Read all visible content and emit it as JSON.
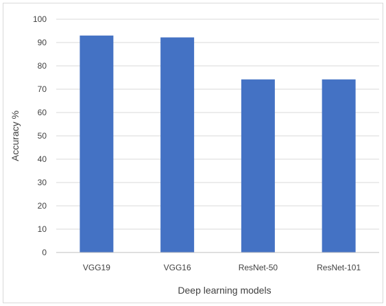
{
  "chart_data": {
    "type": "bar",
    "title": "",
    "xlabel": "Deep learning models",
    "ylabel": "Accuracy %",
    "categories": [
      "VGG19",
      "VGG16",
      "ResNet-50",
      "ResNet-101"
    ],
    "values": [
      93,
      92.2,
      74.2,
      74.2
    ],
    "ylim": [
      0,
      100
    ],
    "yticks": [
      "0",
      "10",
      "20",
      "30",
      "40",
      "50",
      "60",
      "70",
      "80",
      "90",
      "100"
    ],
    "grid": true,
    "legend": "none",
    "bar_color": "#4472c4"
  }
}
